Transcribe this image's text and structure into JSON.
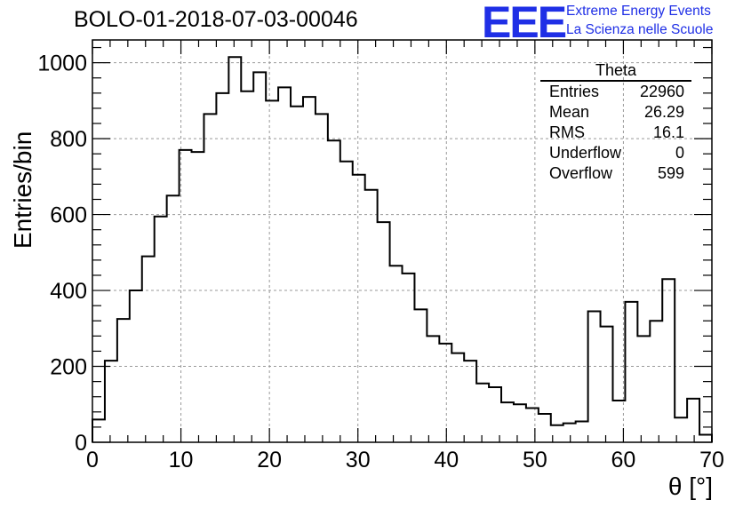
{
  "title": "BOLO-01-2018-07-03-00046",
  "logo": {
    "mark": "EEE",
    "line1": "Extreme Energy Events",
    "line2": "La Scienza nelle Scuole",
    "color": "#1f2fe6"
  },
  "stats_box": {
    "title": "Theta",
    "rows": [
      {
        "label": "Entries",
        "value": "22960"
      },
      {
        "label": "Mean",
        "value": "26.29"
      },
      {
        "label": "RMS",
        "value": "16.1"
      },
      {
        "label": "Underflow",
        "value": "0"
      },
      {
        "label": "Overflow",
        "value": "599"
      }
    ]
  },
  "chart_data": {
    "type": "histogram",
    "title": "BOLO-01-2018-07-03-00046",
    "xlabel": "θ [°]",
    "ylabel": "Entries/bin",
    "xlim": [
      0,
      70
    ],
    "ylim": [
      0,
      1000
    ],
    "xticks": [
      0,
      10,
      20,
      30,
      40,
      50,
      60,
      70
    ],
    "yticks": [
      0,
      200,
      400,
      600,
      800,
      1000
    ],
    "grid": true,
    "bin_width": 1.4,
    "bin_edges_start": 0,
    "values": [
      60,
      215,
      325,
      400,
      490,
      595,
      650,
      770,
      765,
      865,
      920,
      1015,
      925,
      975,
      900,
      935,
      885,
      910,
      865,
      795,
      740,
      705,
      665,
      580,
      465,
      445,
      350,
      280,
      260,
      235,
      215,
      155,
      145,
      105,
      100,
      90,
      75,
      45,
      50,
      55,
      345,
      305,
      110,
      370,
      280,
      320,
      430,
      65,
      115,
      20
    ],
    "line_color": "#000000"
  }
}
